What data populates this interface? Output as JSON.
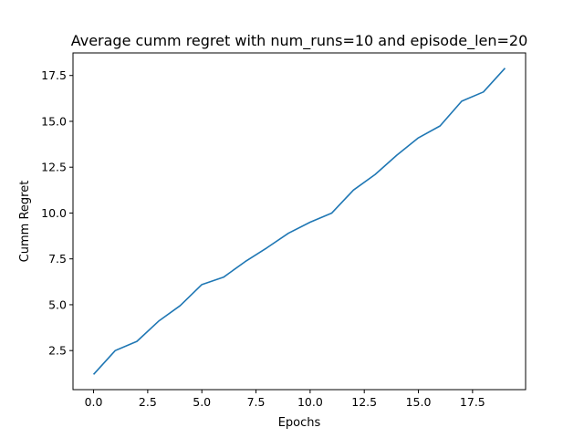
{
  "chart_data": {
    "type": "line",
    "title": "Average cumm regret with num_runs=10 and episode_len=20",
    "xlabel": "Epochs",
    "ylabel": "Cumm Regret",
    "xlim": [
      -0.95,
      19.95
    ],
    "ylim": [
      0.37,
      18.73
    ],
    "xticks": [
      0.0,
      2.5,
      5.0,
      7.5,
      10.0,
      12.5,
      15.0,
      17.5
    ],
    "xtick_labels": [
      "0.0",
      "2.5",
      "5.0",
      "7.5",
      "10.0",
      "12.5",
      "15.0",
      "17.5"
    ],
    "yticks": [
      2.5,
      5.0,
      7.5,
      10.0,
      12.5,
      15.0,
      17.5
    ],
    "ytick_labels": [
      "2.5",
      "5.0",
      "7.5",
      "10.0",
      "12.5",
      "15.0",
      "17.5"
    ],
    "grid": false,
    "color": "#1f77b4",
    "x": [
      0,
      1,
      2,
      3,
      4,
      5,
      6,
      7,
      8,
      9,
      10,
      11,
      12,
      13,
      14,
      15,
      16,
      17,
      18,
      19
    ],
    "y": [
      1.2,
      2.5,
      3.0,
      4.1,
      4.95,
      6.1,
      6.5,
      7.35,
      8.1,
      8.9,
      9.5,
      10.0,
      11.25,
      12.1,
      13.15,
      14.1,
      14.75,
      16.1,
      16.6,
      17.9
    ]
  }
}
